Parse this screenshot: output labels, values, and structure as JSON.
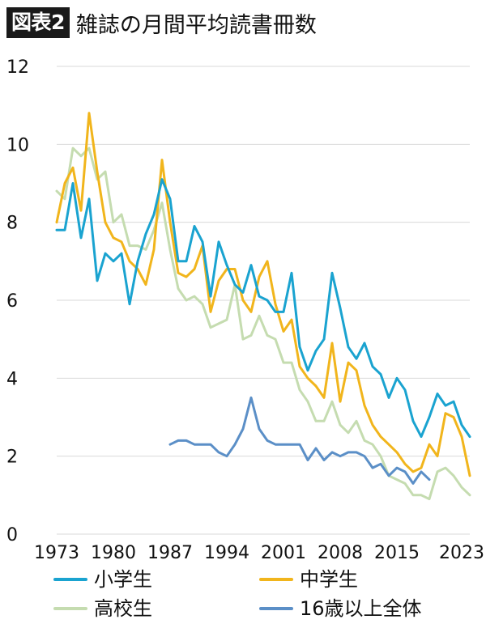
{
  "header": {
    "badge": "図表2",
    "title": "雑誌の月間平均読書冊数"
  },
  "chart_data": {
    "type": "line",
    "title": "雑誌の月間平均読書冊数",
    "xlabel": "",
    "ylabel": "",
    "xlim": [
      1973,
      2024
    ],
    "ylim": [
      0,
      12
    ],
    "yticks": [
      0,
      2,
      4,
      6,
      8,
      10,
      12
    ],
    "xticks": [
      1973,
      1980,
      1987,
      1994,
      2001,
      2008,
      2015,
      2023
    ],
    "ytick_labels": [
      "0",
      "2",
      "4",
      "6",
      "8",
      "10",
      "12"
    ],
    "xtick_labels": [
      "1973",
      "1980",
      "1987",
      "1994",
      "2001",
      "2008",
      "2015",
      "2023"
    ],
    "grid": "horizontal",
    "legend_position": "bottom",
    "series": [
      {
        "name": "小学生",
        "color": "#1aa3d0",
        "x": [
          1973,
          1974,
          1975,
          1976,
          1977,
          1978,
          1979,
          1980,
          1981,
          1982,
          1983,
          1984,
          1985,
          1986,
          1987,
          1988,
          1989,
          1990,
          1991,
          1992,
          1993,
          1994,
          1995,
          1996,
          1997,
          1998,
          1999,
          2000,
          2001,
          2002,
          2003,
          2004,
          2005,
          2006,
          2007,
          2008,
          2009,
          2010,
          2011,
          2012,
          2013,
          2014,
          2015,
          2016,
          2017,
          2018,
          2019,
          2020,
          2021,
          2022,
          2023,
          2024
        ],
        "values": [
          7.8,
          7.8,
          9.0,
          7.6,
          8.6,
          6.5,
          7.2,
          7.0,
          7.2,
          5.9,
          7.0,
          7.7,
          8.2,
          9.1,
          8.6,
          7.0,
          7.0,
          7.9,
          7.5,
          6.1,
          7.5,
          6.9,
          6.4,
          6.2,
          6.9,
          6.1,
          6.0,
          5.7,
          5.7,
          6.7,
          4.8,
          4.2,
          4.7,
          5.0,
          6.7,
          5.8,
          4.8,
          4.5,
          4.9,
          4.3,
          4.1,
          3.5,
          4.0,
          3.7,
          2.9,
          2.5,
          3.0,
          3.6,
          3.3,
          3.4,
          2.8,
          2.5
        ]
      },
      {
        "name": "中学生",
        "color": "#f1b51c",
        "x": [
          1973,
          1974,
          1975,
          1976,
          1977,
          1978,
          1979,
          1980,
          1981,
          1982,
          1983,
          1984,
          1985,
          1986,
          1987,
          1988,
          1989,
          1990,
          1991,
          1992,
          1993,
          1994,
          1995,
          1996,
          1997,
          1998,
          1999,
          2000,
          2001,
          2002,
          2003,
          2004,
          2005,
          2006,
          2007,
          2008,
          2009,
          2010,
          2011,
          2012,
          2013,
          2014,
          2015,
          2016,
          2017,
          2018,
          2019,
          2020,
          2021,
          2022,
          2023,
          2024
        ],
        "values": [
          8.0,
          9.0,
          9.4,
          8.3,
          10.8,
          9.3,
          8.0,
          7.6,
          7.5,
          7.0,
          6.8,
          6.4,
          7.3,
          9.6,
          8.0,
          6.7,
          6.6,
          6.8,
          7.4,
          5.7,
          6.5,
          6.8,
          6.8,
          6.0,
          5.7,
          6.6,
          7.0,
          5.9,
          5.2,
          5.5,
          4.3,
          4.0,
          3.8,
          3.5,
          4.9,
          3.4,
          4.4,
          4.2,
          3.3,
          2.8,
          2.5,
          2.3,
          2.1,
          1.8,
          1.6,
          1.7,
          2.3,
          2.0,
          3.1,
          3.0,
          2.5,
          1.5
        ]
      },
      {
        "name": "高校生",
        "color": "#c5dcb0",
        "x": [
          1973,
          1974,
          1975,
          1976,
          1977,
          1978,
          1979,
          1980,
          1981,
          1982,
          1983,
          1984,
          1985,
          1986,
          1987,
          1988,
          1989,
          1990,
          1991,
          1992,
          1993,
          1994,
          1995,
          1996,
          1997,
          1998,
          1999,
          2000,
          2001,
          2002,
          2003,
          2004,
          2005,
          2006,
          2007,
          2008,
          2009,
          2010,
          2011,
          2012,
          2013,
          2014,
          2015,
          2016,
          2017,
          2018,
          2019,
          2020,
          2021,
          2022,
          2023,
          2024
        ],
        "values": [
          8.8,
          8.6,
          9.9,
          9.7,
          9.9,
          9.1,
          9.3,
          8.0,
          8.2,
          7.4,
          7.4,
          7.3,
          7.8,
          8.5,
          7.3,
          6.3,
          6.0,
          6.1,
          5.9,
          5.3,
          5.4,
          5.5,
          6.4,
          5.0,
          5.1,
          5.6,
          5.1,
          5.0,
          4.4,
          4.4,
          3.7,
          3.4,
          2.9,
          2.9,
          3.4,
          2.8,
          2.6,
          2.9,
          2.4,
          2.3,
          2.0,
          1.5,
          1.4,
          1.3,
          1.0,
          1.0,
          0.9,
          1.6,
          1.7,
          1.5,
          1.2,
          1.0
        ]
      },
      {
        "name": "16歳以上全体",
        "color": "#5b8fc7",
        "x": [
          1987,
          1988,
          1989,
          1990,
          1991,
          1992,
          1993,
          1994,
          1995,
          1996,
          1997,
          1998,
          1999,
          2000,
          2001,
          2002,
          2003,
          2004,
          2005,
          2006,
          2007,
          2008,
          2009,
          2010,
          2011,
          2012,
          2013,
          2014,
          2015,
          2016,
          2017,
          2018,
          2019
        ],
        "values": [
          2.3,
          2.4,
          2.4,
          2.3,
          2.3,
          2.3,
          2.1,
          2.0,
          2.3,
          2.7,
          3.5,
          2.7,
          2.4,
          2.3,
          2.3,
          2.3,
          2.3,
          1.9,
          2.2,
          1.9,
          2.1,
          2.0,
          2.1,
          2.1,
          2.0,
          1.7,
          1.8,
          1.5,
          1.7,
          1.6,
          1.3,
          1.6,
          1.4
        ]
      }
    ]
  }
}
